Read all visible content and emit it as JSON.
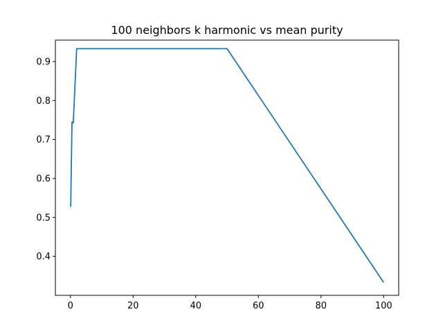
{
  "chart_data": {
    "type": "line",
    "title": "100 neighbors k harmonic vs mean purity",
    "xlabel": "",
    "ylabel": "",
    "xlim": [
      -4.8,
      104.8
    ],
    "ylim": [
      0.3,
      0.955
    ],
    "xticks": [
      0,
      20,
      40,
      60,
      80,
      100
    ],
    "yticks": [
      0.4,
      0.5,
      0.6,
      0.7,
      0.8,
      0.9
    ],
    "xtick_labels": [
      "0",
      "20",
      "40",
      "60",
      "80",
      "100"
    ],
    "ytick_labels": [
      "0.4",
      "0.5",
      "0.6",
      "0.7",
      "0.8",
      "0.9"
    ],
    "grid": false,
    "legend": false,
    "series": [
      {
        "color": "#1f77b4",
        "x": [
          0.1,
          0.5,
          0.9,
          2,
          50,
          100
        ],
        "y": [
          0.527,
          0.745,
          0.742,
          0.933,
          0.933,
          0.333
        ]
      }
    ]
  }
}
